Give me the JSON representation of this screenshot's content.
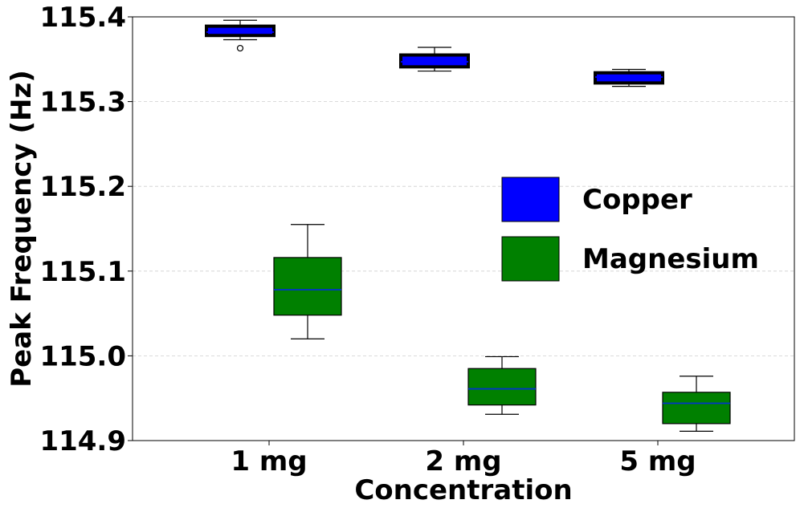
{
  "chart_data": {
    "type": "boxplot",
    "title": "",
    "xlabel": "Concentration",
    "ylabel": "Peak Frequency (Hz)",
    "ylim": [
      114.9,
      115.4
    ],
    "yticks": [
      "114.9",
      "115.0",
      "115.1",
      "115.2",
      "115.3",
      "115.4"
    ],
    "grid": "horizontal dashed",
    "categories": [
      "1 mg",
      "2 mg",
      "5 mg"
    ],
    "legend_position": "center-right",
    "series": [
      {
        "name": "Copper",
        "color": "#0000ff",
        "edge_color": "#000000",
        "median_color": "#0000ff",
        "boxes": [
          {
            "category": "1 mg",
            "whisker_low": 115.373,
            "q1": 115.378,
            "median": 115.382,
            "q3": 115.389,
            "whisker_high": 115.396,
            "outliers": [
              115.363
            ]
          },
          {
            "category": "2 mg",
            "whisker_low": 115.336,
            "q1": 115.341,
            "median": 115.347,
            "q3": 115.355,
            "whisker_high": 115.364,
            "outliers": []
          },
          {
            "category": "5 mg",
            "whisker_low": 115.318,
            "q1": 115.322,
            "median": 115.329,
            "q3": 115.334,
            "whisker_high": 115.338,
            "outliers": []
          }
        ]
      },
      {
        "name": "Magnesium",
        "color": "#008000",
        "edge_color": "#000000",
        "median_color": "#0033cc",
        "boxes": [
          {
            "category": "1 mg",
            "whisker_low": 115.02,
            "q1": 115.048,
            "median": 115.078,
            "q3": 115.116,
            "whisker_high": 115.155,
            "outliers": []
          },
          {
            "category": "2 mg",
            "whisker_low": 114.931,
            "q1": 114.942,
            "median": 114.961,
            "q3": 114.985,
            "whisker_high": 114.999,
            "outliers": []
          },
          {
            "category": "5 mg",
            "whisker_low": 114.911,
            "q1": 114.92,
            "median": 114.944,
            "q3": 114.957,
            "whisker_high": 114.976,
            "outliers": []
          }
        ]
      }
    ]
  }
}
